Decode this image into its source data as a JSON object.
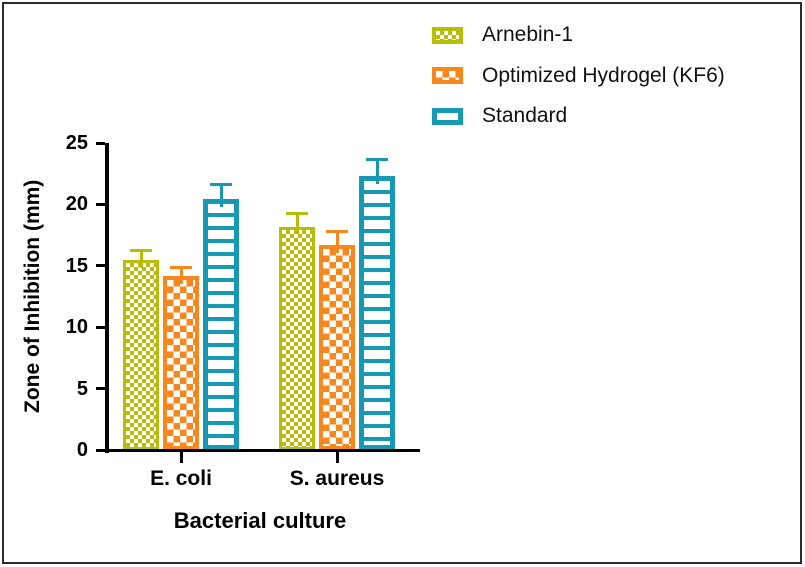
{
  "figure": {
    "background": "#ffffff",
    "border_color": "#2b2b2b",
    "axis_color": "#000000",
    "text_color": "#000000"
  },
  "chart_data": {
    "type": "bar",
    "title": "",
    "xlabel": "Bacterial culture",
    "ylabel": "Zone of Inhibition (mm)",
    "categories": [
      "E. coli",
      "S. aureus"
    ],
    "series": [
      {
        "name": "Arnebin-1",
        "color": "#b8bd09",
        "pattern": "checker-small",
        "values": [
          15.5,
          18.2
        ],
        "errors_sd_upper": [
          0.8,
          1.1
        ]
      },
      {
        "name": "Optimized Hydrogel (KF6)",
        "color": "#f8871d",
        "pattern": "checker-large",
        "values": [
          14.2,
          16.7
        ],
        "errors_sd_upper": [
          0.7,
          1.1
        ]
      },
      {
        "name": "Standard",
        "color": "#1799b4",
        "pattern": "hlines",
        "values": [
          20.4,
          22.3
        ],
        "errors_sd_upper": [
          1.3,
          1.4
        ]
      }
    ],
    "ylim": [
      0,
      25
    ],
    "yticks": [
      0,
      5,
      10,
      15,
      20,
      25
    ],
    "error_bars": "upper only, capped",
    "legend_position": "top-right",
    "grid": false
  }
}
